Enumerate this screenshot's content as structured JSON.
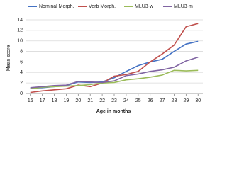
{
  "chart_data": {
    "type": "line",
    "x_label": "Age in months",
    "y_label": "Mean score",
    "x": [
      16,
      17,
      18,
      19,
      20,
      21,
      22,
      23,
      24,
      25,
      26,
      27,
      28,
      29,
      30
    ],
    "xlim": [
      15.6,
      30.4
    ],
    "xticks": [
      16,
      17,
      18,
      19,
      20,
      21,
      22,
      23,
      24,
      25,
      26,
      27,
      28,
      29,
      30
    ],
    "ylim": [
      0,
      14
    ],
    "yticks": [
      0,
      2,
      4,
      6,
      8,
      10,
      12,
      14
    ],
    "grid": true,
    "legend": "top",
    "series": [
      {
        "name": "Nominal Morph.",
        "color": "#4472c4",
        "values": [
          1.0,
          1.1,
          1.3,
          1.5,
          2.2,
          2.1,
          2.2,
          3.0,
          4.2,
          5.3,
          6.0,
          6.5,
          8.0,
          9.4,
          9.9
        ]
      },
      {
        "name": "Verb Morph.",
        "color": "#c0504d",
        "values": [
          0.2,
          0.5,
          0.7,
          0.9,
          1.6,
          1.3,
          2.0,
          3.3,
          3.6,
          4.2,
          6.0,
          7.5,
          9.2,
          12.7,
          13.3
        ]
      },
      {
        "name": "MLU3-w",
        "color": "#9bbb59",
        "values": [
          0.9,
          1.2,
          1.3,
          1.4,
          1.5,
          1.7,
          2.0,
          2.1,
          2.6,
          2.8,
          3.1,
          3.5,
          4.4,
          4.3,
          4.4
        ]
      },
      {
        "name": "MLU3-m",
        "color": "#8064a2",
        "values": [
          1.1,
          1.3,
          1.5,
          1.6,
          2.3,
          2.2,
          2.1,
          2.4,
          3.4,
          3.7,
          4.2,
          4.5,
          5.0,
          6.2,
          6.9
        ]
      }
    ]
  }
}
